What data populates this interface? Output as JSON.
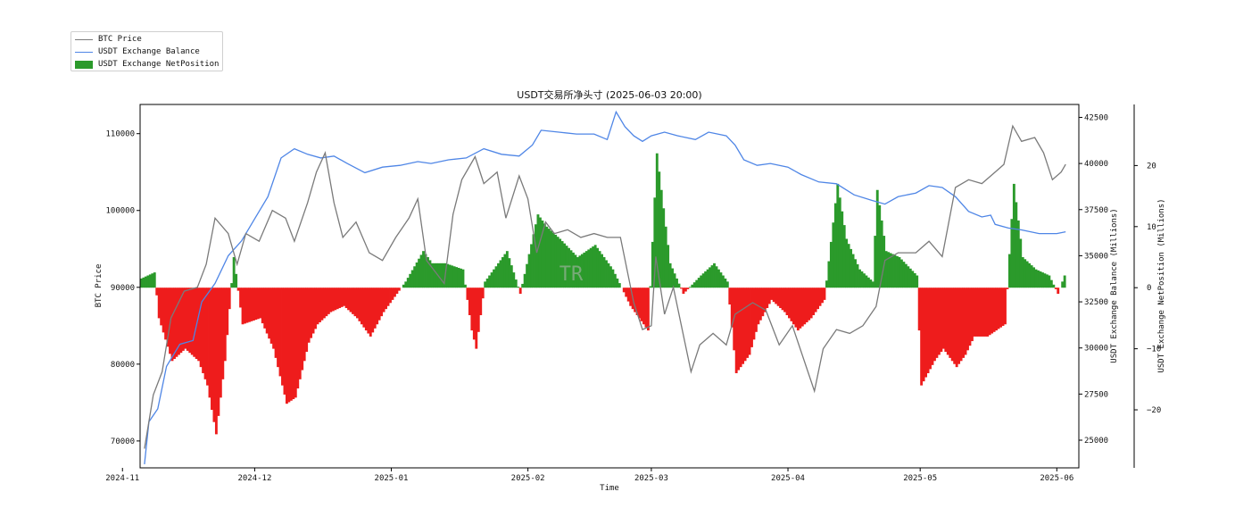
{
  "legend": {
    "items": [
      {
        "label": "BTC Price",
        "color": "#7a7a7a",
        "kind": "line"
      },
      {
        "label": "USDT Exchange Balance",
        "color": "#4f86e6",
        "kind": "line"
      },
      {
        "label": "USDT Exchange NetPosition",
        "color": "#2b9a2b",
        "kind": "patch"
      }
    ]
  },
  "watermark": "TR",
  "chart_data": {
    "type": "line",
    "title": "USDT交易所净头寸 (2025-06-03 20:00)",
    "xlabel": "Time",
    "ylabel_left": "BTC Price",
    "ylabel_right": "USDT Exchange Balance (Millions)",
    "ylabel_right2": "USDT Exchange NetPosition (Millions)",
    "grid": false,
    "legend_position": "top-left outside",
    "x_range": [
      "2024-11-05",
      "2025-06-06"
    ],
    "x_ticks": [
      "2024-11",
      "2024-12",
      "2025-01",
      "2025-02",
      "2025-03",
      "2025-04",
      "2025-05",
      "2025-06"
    ],
    "x_tick_dates": [
      "2024-11-01",
      "2024-12-01",
      "2025-01-01",
      "2025-02-01",
      "2025-03-01",
      "2025-04-01",
      "2025-05-01",
      "2025-06-01"
    ],
    "ylim_left": [
      66500,
      113800
    ],
    "yticks_left": [
      70000,
      80000,
      90000,
      100000,
      110000
    ],
    "ylim_right": [
      23500,
      43200
    ],
    "yticks_right": [
      25000,
      27500,
      30000,
      32500,
      35000,
      37500,
      40000,
      42500
    ],
    "ylim_right2": [
      -29.5,
      30
    ],
    "yticks_right2": [
      -20,
      -10,
      0,
      10,
      20
    ],
    "net_colors": {
      "positive": "#2b9a2b",
      "negative": "#ee1c1c"
    },
    "series": [
      {
        "name": "BTC Price",
        "axis": "left",
        "color": "#7a7a7a",
        "points": [
          [
            "2024-11-06",
            69000
          ],
          [
            "2024-11-08",
            76000
          ],
          [
            "2024-11-10",
            79000
          ],
          [
            "2024-11-12",
            86000
          ],
          [
            "2024-11-15",
            89500
          ],
          [
            "2024-11-18",
            90000
          ],
          [
            "2024-11-20",
            93000
          ],
          [
            "2024-11-22",
            99000
          ],
          [
            "2024-11-25",
            97000
          ],
          [
            "2024-11-27",
            93000
          ],
          [
            "2024-11-29",
            97000
          ],
          [
            "2024-12-02",
            96000
          ],
          [
            "2024-12-05",
            100000
          ],
          [
            "2024-12-08",
            99000
          ],
          [
            "2024-12-10",
            96000
          ],
          [
            "2024-12-13",
            101000
          ],
          [
            "2024-12-15",
            105000
          ],
          [
            "2024-12-17",
            107500
          ],
          [
            "2024-12-19",
            101000
          ],
          [
            "2024-12-21",
            96500
          ],
          [
            "2024-12-24",
            98500
          ],
          [
            "2024-12-27",
            94500
          ],
          [
            "2024-12-30",
            93500
          ],
          [
            "2025-01-02",
            96500
          ],
          [
            "2025-01-05",
            99000
          ],
          [
            "2025-01-07",
            101500
          ],
          [
            "2025-01-09",
            93500
          ],
          [
            "2025-01-13",
            90500
          ],
          [
            "2025-01-15",
            99500
          ],
          [
            "2025-01-17",
            104000
          ],
          [
            "2025-01-20",
            107000
          ],
          [
            "2025-01-22",
            103500
          ],
          [
            "2025-01-25",
            105000
          ],
          [
            "2025-01-27",
            99000
          ],
          [
            "2025-01-30",
            104500
          ],
          [
            "2025-02-01",
            101500
          ],
          [
            "2025-02-03",
            94500
          ],
          [
            "2025-02-05",
            98500
          ],
          [
            "2025-02-07",
            97000
          ],
          [
            "2025-02-10",
            97500
          ],
          [
            "2025-02-13",
            96500
          ],
          [
            "2025-02-16",
            97000
          ],
          [
            "2025-02-19",
            96500
          ],
          [
            "2025-02-22",
            96500
          ],
          [
            "2025-02-25",
            88000
          ],
          [
            "2025-02-27",
            84500
          ],
          [
            "2025-03-01",
            85000
          ],
          [
            "2025-03-02",
            94000
          ],
          [
            "2025-03-04",
            86500
          ],
          [
            "2025-03-06",
            90000
          ],
          [
            "2025-03-10",
            79000
          ],
          [
            "2025-03-12",
            82500
          ],
          [
            "2025-03-15",
            84000
          ],
          [
            "2025-03-18",
            82500
          ],
          [
            "2025-03-20",
            86500
          ],
          [
            "2025-03-24",
            88000
          ],
          [
            "2025-03-27",
            87000
          ],
          [
            "2025-03-30",
            82500
          ],
          [
            "2025-04-02",
            85000
          ],
          [
            "2025-04-07",
            76500
          ],
          [
            "2025-04-09",
            82000
          ],
          [
            "2025-04-12",
            84500
          ],
          [
            "2025-04-15",
            84000
          ],
          [
            "2025-04-18",
            85000
          ],
          [
            "2025-04-21",
            87500
          ],
          [
            "2025-04-23",
            93500
          ],
          [
            "2025-04-26",
            94500
          ],
          [
            "2025-04-30",
            94500
          ],
          [
            "2025-05-03",
            96000
          ],
          [
            "2025-05-06",
            94000
          ],
          [
            "2025-05-09",
            103000
          ],
          [
            "2025-05-12",
            104000
          ],
          [
            "2025-05-15",
            103500
          ],
          [
            "2025-05-18",
            105000
          ],
          [
            "2025-05-20",
            106000
          ],
          [
            "2025-05-22",
            111000
          ],
          [
            "2025-05-24",
            109000
          ],
          [
            "2025-05-27",
            109500
          ],
          [
            "2025-05-29",
            107500
          ],
          [
            "2025-05-31",
            104000
          ],
          [
            "2025-06-02",
            105000
          ],
          [
            "2025-06-03",
            106000
          ]
        ]
      },
      {
        "name": "USDT Exchange Balance",
        "axis": "right",
        "color": "#4f86e6",
        "points": [
          [
            "2024-11-06",
            23700
          ],
          [
            "2024-11-07",
            26000
          ],
          [
            "2024-11-09",
            26700
          ],
          [
            "2024-11-11",
            29000
          ],
          [
            "2024-11-14",
            30200
          ],
          [
            "2024-11-17",
            30400
          ],
          [
            "2024-11-19",
            32500
          ],
          [
            "2024-11-22",
            33500
          ],
          [
            "2024-11-25",
            35000
          ],
          [
            "2024-11-28",
            35800
          ],
          [
            "2024-12-01",
            37000
          ],
          [
            "2024-12-04",
            38200
          ],
          [
            "2024-12-07",
            40300
          ],
          [
            "2024-12-10",
            40800
          ],
          [
            "2024-12-13",
            40500
          ],
          [
            "2024-12-16",
            40300
          ],
          [
            "2024-12-19",
            40400
          ],
          [
            "2024-12-22",
            40000
          ],
          [
            "2024-12-26",
            39500
          ],
          [
            "2024-12-30",
            39800
          ],
          [
            "2025-01-03",
            39900
          ],
          [
            "2025-01-07",
            40100
          ],
          [
            "2025-01-10",
            40000
          ],
          [
            "2025-01-14",
            40200
          ],
          [
            "2025-01-18",
            40300
          ],
          [
            "2025-01-22",
            40800
          ],
          [
            "2025-01-26",
            40500
          ],
          [
            "2025-01-30",
            40400
          ],
          [
            "2025-02-02",
            41000
          ],
          [
            "2025-02-04",
            41800
          ],
          [
            "2025-02-08",
            41700
          ],
          [
            "2025-02-12",
            41600
          ],
          [
            "2025-02-16",
            41600
          ],
          [
            "2025-02-19",
            41300
          ],
          [
            "2025-02-21",
            42800
          ],
          [
            "2025-02-23",
            42000
          ],
          [
            "2025-02-25",
            41500
          ],
          [
            "2025-02-27",
            41200
          ],
          [
            "2025-03-01",
            41500
          ],
          [
            "2025-03-04",
            41700
          ],
          [
            "2025-03-07",
            41500
          ],
          [
            "2025-03-11",
            41300
          ],
          [
            "2025-03-14",
            41700
          ],
          [
            "2025-03-18",
            41500
          ],
          [
            "2025-03-20",
            41000
          ],
          [
            "2025-03-22",
            40200
          ],
          [
            "2025-03-25",
            39900
          ],
          [
            "2025-03-28",
            40000
          ],
          [
            "2025-04-01",
            39800
          ],
          [
            "2025-04-04",
            39400
          ],
          [
            "2025-04-08",
            39000
          ],
          [
            "2025-04-12",
            38900
          ],
          [
            "2025-04-16",
            38300
          ],
          [
            "2025-04-20",
            38000
          ],
          [
            "2025-04-23",
            37800
          ],
          [
            "2025-04-26",
            38200
          ],
          [
            "2025-04-30",
            38400
          ],
          [
            "2025-05-03",
            38800
          ],
          [
            "2025-05-06",
            38700
          ],
          [
            "2025-05-09",
            38200
          ],
          [
            "2025-05-12",
            37400
          ],
          [
            "2025-05-15",
            37100
          ],
          [
            "2025-05-17",
            37200
          ],
          [
            "2025-05-18",
            36700
          ],
          [
            "2025-05-21",
            36500
          ],
          [
            "2025-05-24",
            36400
          ],
          [
            "2025-05-28",
            36200
          ],
          [
            "2025-06-01",
            36200
          ],
          [
            "2025-06-03",
            36300
          ]
        ]
      },
      {
        "name": "USDT Exchange NetPosition",
        "axis": "right2",
        "kind": "filled-bars",
        "points": [
          [
            "2024-11-05",
            1.5
          ],
          [
            "2024-11-08",
            2.5
          ],
          [
            "2024-11-09",
            -5
          ],
          [
            "2024-11-12",
            -12
          ],
          [
            "2024-11-15",
            -10
          ],
          [
            "2024-11-18",
            -12
          ],
          [
            "2024-11-20",
            -16
          ],
          [
            "2024-11-22",
            -24
          ],
          [
            "2024-11-24",
            -12
          ],
          [
            "2024-11-26",
            5
          ],
          [
            "2024-11-28",
            -6
          ],
          [
            "2024-12-02",
            -5
          ],
          [
            "2024-12-05",
            -10
          ],
          [
            "2024-12-08",
            -19
          ],
          [
            "2024-12-10",
            -18
          ],
          [
            "2024-12-13",
            -9
          ],
          [
            "2024-12-15",
            -6
          ],
          [
            "2024-12-18",
            -4
          ],
          [
            "2024-12-21",
            -3
          ],
          [
            "2024-12-24",
            -5
          ],
          [
            "2024-12-27",
            -8
          ],
          [
            "2024-12-30",
            -4
          ],
          [
            "2025-01-01",
            -2
          ],
          [
            "2025-01-04",
            1
          ],
          [
            "2025-01-08",
            6
          ],
          [
            "2025-01-10",
            4
          ],
          [
            "2025-01-13",
            4
          ],
          [
            "2025-01-17",
            3
          ],
          [
            "2025-01-19",
            -7
          ],
          [
            "2025-01-20",
            -10
          ],
          [
            "2025-01-22",
            1
          ],
          [
            "2025-01-25",
            4
          ],
          [
            "2025-01-27",
            6
          ],
          [
            "2025-01-30",
            -1
          ],
          [
            "2025-02-03",
            12
          ],
          [
            "2025-02-05",
            10
          ],
          [
            "2025-02-08",
            8
          ],
          [
            "2025-02-12",
            5
          ],
          [
            "2025-02-16",
            7
          ],
          [
            "2025-02-20",
            3
          ],
          [
            "2025-02-24",
            -3
          ],
          [
            "2025-02-26",
            -5
          ],
          [
            "2025-02-28",
            -7
          ],
          [
            "2025-03-02",
            22
          ],
          [
            "2025-03-03",
            16
          ],
          [
            "2025-03-05",
            4
          ],
          [
            "2025-03-08",
            -1
          ],
          [
            "2025-03-12",
            2
          ],
          [
            "2025-03-15",
            4
          ],
          [
            "2025-03-18",
            1
          ],
          [
            "2025-03-20",
            -14
          ],
          [
            "2025-03-23",
            -11
          ],
          [
            "2025-03-25",
            -6
          ],
          [
            "2025-03-28",
            -2
          ],
          [
            "2025-03-31",
            -4
          ],
          [
            "2025-04-03",
            -7
          ],
          [
            "2025-04-06",
            -5
          ],
          [
            "2025-04-09",
            -2
          ],
          [
            "2025-04-12",
            17
          ],
          [
            "2025-04-14",
            8
          ],
          [
            "2025-04-17",
            3
          ],
          [
            "2025-04-20",
            1
          ],
          [
            "2025-04-21",
            16
          ],
          [
            "2025-04-23",
            6
          ],
          [
            "2025-04-26",
            5
          ],
          [
            "2025-04-30",
            2
          ],
          [
            "2025-05-01",
            -16
          ],
          [
            "2025-05-04",
            -12
          ],
          [
            "2025-05-06",
            -10
          ],
          [
            "2025-05-09",
            -13
          ],
          [
            "2025-05-11",
            -11
          ],
          [
            "2025-05-13",
            -8
          ],
          [
            "2025-05-16",
            -8
          ],
          [
            "2025-05-20",
            -6
          ],
          [
            "2025-05-22",
            17
          ],
          [
            "2025-05-24",
            5
          ],
          [
            "2025-05-27",
            3
          ],
          [
            "2025-05-30",
            2
          ],
          [
            "2025-06-01",
            -1
          ],
          [
            "2025-06-03",
            3
          ]
        ]
      }
    ]
  }
}
